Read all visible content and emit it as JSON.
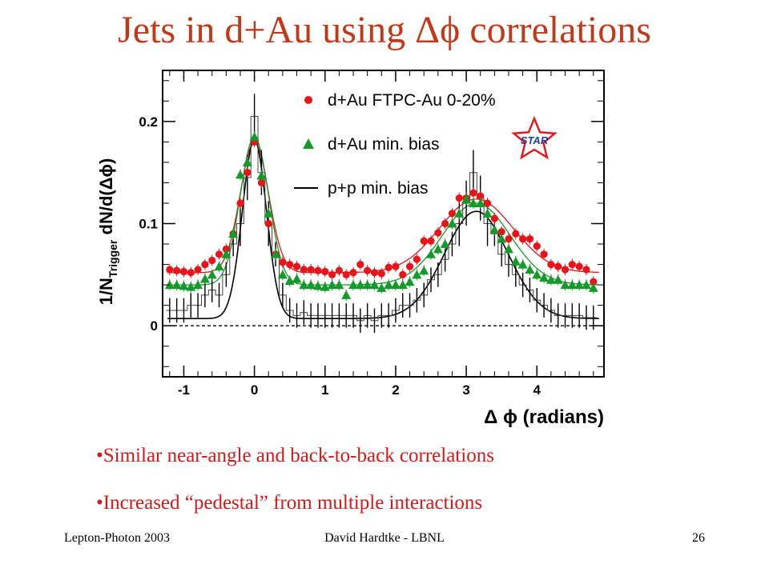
{
  "slide": {
    "title": "Jets in d+Au using Δϕ correlations",
    "bullets": [
      "•Similar near-angle and back-to-back correlations",
      "•Increased “pedestal” from multiple interactions"
    ],
    "footer": {
      "left": "Lepton-Photon 2003",
      "center": "David Hardtke - LBNL",
      "right": "26"
    }
  },
  "chart_data": {
    "type": "scatter",
    "title": "",
    "xlabel": "Δ ϕ (radians)",
    "ylabel": "1/N_Trigger dN/d(Δϕ)",
    "xlim": [
      -1.3,
      4.95
    ],
    "ylim": [
      -0.05,
      0.25
    ],
    "xticks": [
      -1,
      0,
      1,
      2,
      3,
      4
    ],
    "yticks": [
      0,
      0.1,
      0.2
    ],
    "xtick_labels": [
      "-1",
      "0",
      "1",
      "2",
      "3",
      "4"
    ],
    "ytick_labels": [
      "0",
      "0.1",
      "0.2"
    ],
    "logo": "STAR",
    "legend_position": "top-right",
    "baseline": 0,
    "colors": {
      "dau_central": "#e8141a",
      "dau_minbias": "#149a2a",
      "pp_minbias": "#000000"
    },
    "series": [
      {
        "name": "d+Au FTPC-Au 0-20%",
        "marker": "circle",
        "color": "#e8141a",
        "x": [
          -1.2,
          -1.1,
          -1.0,
          -0.9,
          -0.8,
          -0.7,
          -0.6,
          -0.5,
          -0.4,
          -0.3,
          -0.2,
          -0.1,
          0.0,
          0.1,
          0.2,
          0.3,
          0.4,
          0.5,
          0.6,
          0.7,
          0.8,
          0.9,
          1.0,
          1.1,
          1.2,
          1.3,
          1.4,
          1.5,
          1.6,
          1.7,
          1.8,
          1.9,
          2.0,
          2.1,
          2.2,
          2.3,
          2.4,
          2.5,
          2.6,
          2.7,
          2.8,
          2.9,
          3.0,
          3.1,
          3.2,
          3.3,
          3.4,
          3.5,
          3.6,
          3.7,
          3.8,
          3.9,
          4.0,
          4.1,
          4.2,
          4.3,
          4.4,
          4.5,
          4.6,
          4.7,
          4.8
        ],
        "y": [
          0.055,
          0.054,
          0.053,
          0.052,
          0.055,
          0.06,
          0.064,
          0.07,
          0.075,
          0.09,
          0.12,
          0.15,
          0.18,
          0.14,
          0.1,
          0.07,
          0.062,
          0.06,
          0.058,
          0.055,
          0.055,
          0.054,
          0.053,
          0.05,
          0.054,
          0.05,
          0.052,
          0.06,
          0.054,
          0.052,
          0.051,
          0.057,
          0.058,
          0.05,
          0.058,
          0.065,
          0.083,
          0.083,
          0.091,
          0.1,
          0.11,
          0.125,
          0.125,
          0.13,
          0.127,
          0.12,
          0.105,
          0.092,
          0.085,
          0.09,
          0.085,
          0.085,
          0.078,
          0.07,
          0.06,
          0.058,
          0.055,
          0.06,
          0.058,
          0.055,
          0.043
        ]
      },
      {
        "name": "d+Au min. bias",
        "marker": "triangle",
        "color": "#149a2a",
        "x": [
          -1.2,
          -1.1,
          -1.0,
          -0.9,
          -0.8,
          -0.7,
          -0.6,
          -0.5,
          -0.4,
          -0.3,
          -0.2,
          -0.1,
          0.0,
          0.1,
          0.2,
          0.3,
          0.4,
          0.5,
          0.6,
          0.7,
          0.8,
          0.9,
          1.0,
          1.1,
          1.2,
          1.3,
          1.4,
          1.5,
          1.6,
          1.7,
          1.8,
          1.9,
          2.0,
          2.1,
          2.2,
          2.3,
          2.4,
          2.5,
          2.6,
          2.7,
          2.8,
          2.9,
          3.0,
          3.1,
          3.2,
          3.3,
          3.4,
          3.5,
          3.6,
          3.7,
          3.8,
          3.9,
          4.0,
          4.1,
          4.2,
          4.3,
          4.4,
          4.5,
          4.6,
          4.7,
          4.8
        ],
        "y": [
          0.04,
          0.04,
          0.039,
          0.038,
          0.04,
          0.046,
          0.05,
          0.058,
          0.07,
          0.09,
          0.148,
          0.16,
          0.185,
          0.147,
          0.11,
          0.07,
          0.05,
          0.044,
          0.046,
          0.04,
          0.04,
          0.039,
          0.038,
          0.04,
          0.04,
          0.03,
          0.04,
          0.04,
          0.04,
          0.04,
          0.037,
          0.04,
          0.04,
          0.04,
          0.043,
          0.05,
          0.054,
          0.07,
          0.075,
          0.08,
          0.1,
          0.11,
          0.124,
          0.12,
          0.12,
          0.11,
          0.094,
          0.085,
          0.075,
          0.063,
          0.06,
          0.055,
          0.05,
          0.047,
          0.045,
          0.045,
          0.04,
          0.04,
          0.04,
          0.04,
          0.037
        ]
      },
      {
        "name": "p+p min. bias",
        "marker": "line",
        "color": "#000000",
        "x": [
          -1.2,
          -1.1,
          -1.0,
          -0.9,
          -0.8,
          -0.7,
          -0.6,
          -0.5,
          -0.4,
          -0.3,
          -0.2,
          -0.1,
          0.0,
          0.1,
          0.2,
          0.3,
          0.4,
          0.5,
          0.6,
          0.7,
          0.8,
          0.9,
          1.0,
          1.1,
          1.2,
          1.3,
          1.4,
          1.5,
          1.6,
          1.7,
          1.8,
          1.9,
          2.0,
          2.1,
          2.2,
          2.3,
          2.4,
          2.5,
          2.6,
          2.7,
          2.8,
          2.9,
          3.0,
          3.1,
          3.2,
          3.3,
          3.4,
          3.5,
          3.6,
          3.7,
          3.8,
          3.9,
          4.0,
          4.1,
          4.2,
          4.3,
          4.4,
          4.5,
          4.6,
          4.7,
          4.8
        ],
        "y": [
          0.015,
          0.015,
          0.015,
          0.02,
          0.02,
          0.03,
          0.035,
          0.03,
          0.05,
          0.08,
          0.1,
          0.145,
          0.205,
          0.15,
          0.1,
          0.07,
          0.03,
          0.015,
          0.01,
          0.013,
          0.01,
          0.01,
          0.01,
          0.01,
          0.01,
          0.01,
          0.01,
          0.005,
          0.01,
          0.005,
          0.01,
          0.01,
          0.015,
          0.02,
          0.02,
          0.025,
          0.03,
          0.045,
          0.05,
          0.065,
          0.08,
          0.1,
          0.12,
          0.15,
          0.125,
          0.1,
          0.09,
          0.07,
          0.06,
          0.05,
          0.04,
          0.035,
          0.025,
          0.02,
          0.015,
          0.01,
          0.01,
          0.01,
          0.01,
          0.008,
          0.008
        ]
      }
    ],
    "fits": [
      {
        "series": "d+Au FTPC-Au 0-20%",
        "pedestal": 0.052,
        "near_amp": 0.128,
        "near_width": 0.2,
        "away_amp": 0.072,
        "away_width": 0.52,
        "away_center": 3.14159
      },
      {
        "series": "d+Au min. bias",
        "pedestal": 0.04,
        "near_amp": 0.145,
        "near_width": 0.2,
        "away_amp": 0.08,
        "away_width": 0.48,
        "away_center": 3.14159
      },
      {
        "series": "p+p min. bias",
        "pedestal": 0.007,
        "near_amp": 0.175,
        "near_width": 0.17,
        "away_amp": 0.105,
        "away_width": 0.45,
        "away_center": 3.14159
      }
    ]
  }
}
